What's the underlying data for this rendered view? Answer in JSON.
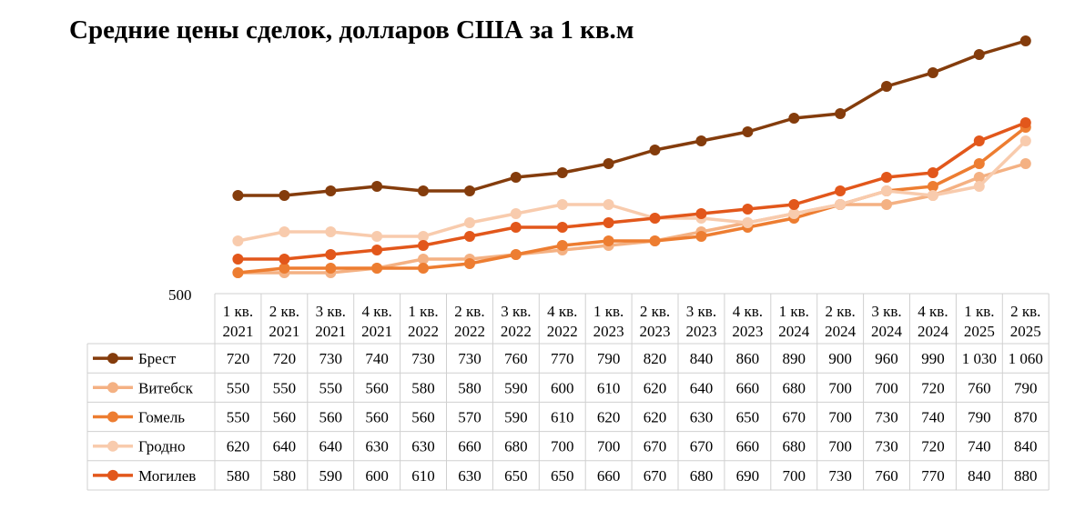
{
  "chart_data": {
    "type": "line",
    "title": "Средние цены сделок, долларов США за 1 кв.м",
    "ytick_label": "500",
    "categories": [
      [
        "1 кв.",
        "2021"
      ],
      [
        "2 кв.",
        "2021"
      ],
      [
        "3 кв.",
        "2021"
      ],
      [
        "4 кв.",
        "2021"
      ],
      [
        "1 кв.",
        "2022"
      ],
      [
        "2 кв.",
        "2022"
      ],
      [
        "3 кв.",
        "2022"
      ],
      [
        "4 кв.",
        "2022"
      ],
      [
        "1 кв.",
        "2023"
      ],
      [
        "2 кв.",
        "2023"
      ],
      [
        "3 кв.",
        "2023"
      ],
      [
        "4 кв.",
        "2023"
      ],
      [
        "1 кв.",
        "2024"
      ],
      [
        "2 кв.",
        "2024"
      ],
      [
        "3 кв.",
        "2024"
      ],
      [
        "4 кв.",
        "2024"
      ],
      [
        "1 кв.",
        "2025"
      ],
      [
        "2 кв.",
        "2025"
      ]
    ],
    "ylim": [
      500,
      1060
    ],
    "grid": false,
    "legend": "data-table",
    "series": [
      {
        "name": "Брест",
        "color": "#843C0C",
        "values": [
          720,
          720,
          730,
          740,
          730,
          730,
          760,
          770,
          790,
          820,
          840,
          860,
          890,
          900,
          960,
          990,
          1030,
          1060
        ],
        "labels": [
          "720",
          "720",
          "730",
          "740",
          "730",
          "730",
          "760",
          "770",
          "790",
          "820",
          "840",
          "860",
          "890",
          "900",
          "960",
          "990",
          "1 030",
          "1 060"
        ]
      },
      {
        "name": "Витебск",
        "color": "#F4B183",
        "values": [
          550,
          550,
          550,
          560,
          580,
          580,
          590,
          600,
          610,
          620,
          640,
          660,
          680,
          700,
          700,
          720,
          760,
          790
        ],
        "labels": [
          "550",
          "550",
          "550",
          "560",
          "580",
          "580",
          "590",
          "600",
          "610",
          "620",
          "640",
          "660",
          "680",
          "700",
          "700",
          "720",
          "760",
          "790"
        ]
      },
      {
        "name": "Гомель",
        "color": "#ED7D31",
        "values": [
          550,
          560,
          560,
          560,
          560,
          570,
          590,
          610,
          620,
          620,
          630,
          650,
          670,
          700,
          730,
          740,
          790,
          870
        ],
        "labels": [
          "550",
          "560",
          "560",
          "560",
          "560",
          "570",
          "590",
          "610",
          "620",
          "620",
          "630",
          "650",
          "670",
          "700",
          "730",
          "740",
          "790",
          "870"
        ]
      },
      {
        "name": "Гродно",
        "color": "#F8CBAD",
        "values": [
          620,
          640,
          640,
          630,
          630,
          660,
          680,
          700,
          700,
          670,
          670,
          660,
          680,
          700,
          730,
          720,
          740,
          840
        ],
        "labels": [
          "620",
          "640",
          "640",
          "630",
          "630",
          "660",
          "680",
          "700",
          "700",
          "670",
          "670",
          "660",
          "680",
          "700",
          "730",
          "720",
          "740",
          "840"
        ]
      },
      {
        "name": "Могилев",
        "color": "#E2571B",
        "values": [
          580,
          580,
          590,
          600,
          610,
          630,
          650,
          650,
          660,
          670,
          680,
          690,
          700,
          730,
          760,
          770,
          840,
          880
        ],
        "labels": [
          "580",
          "580",
          "590",
          "600",
          "610",
          "630",
          "650",
          "650",
          "660",
          "670",
          "680",
          "690",
          "700",
          "730",
          "760",
          "770",
          "840",
          "880"
        ]
      }
    ]
  }
}
